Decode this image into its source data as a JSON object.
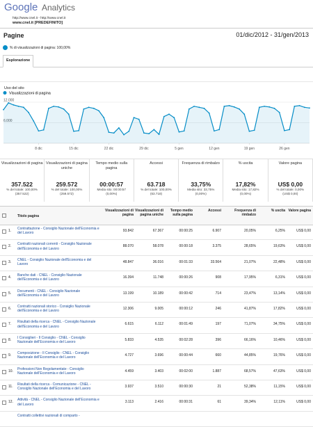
{
  "header": {
    "logo": "Google",
    "product": "Analytics",
    "url": "http://www.cnel.it - http://www.cnel.it",
    "profile": "www.cnel.it [PREDEFINITO]"
  },
  "title": "Pagine",
  "date_range": "01/dic/2012 - 31/gen/2013",
  "segment": "% di visualizzazioni di pagina: 100,00%",
  "tab": "Esplorazione",
  "subtab": "Uso del sito",
  "chart_data": {
    "type": "line",
    "legend": "Visualizzazioni di pagina",
    "color": "#058dc7",
    "categories": [
      null,
      null,
      null,
      null,
      null,
      null,
      null,
      "8 dic",
      null,
      null,
      null,
      null,
      null,
      null,
      "15 dic",
      null,
      null,
      null,
      null,
      null,
      null,
      "22 dic",
      null,
      null,
      null,
      null,
      null,
      null,
      "29 dic",
      null,
      null,
      null,
      null,
      null,
      null,
      "5 gen",
      null,
      null,
      null,
      null,
      null,
      null,
      "12 gen",
      null,
      null,
      null,
      null,
      null,
      null,
      "19 gen",
      null,
      null,
      null,
      null,
      null,
      null,
      "26 gen",
      null,
      null,
      null,
      null,
      null
    ],
    "values": [
      9800,
      11800,
      11200,
      10800,
      10500,
      9000,
      6500,
      3600,
      3900,
      10200,
      10800,
      10600,
      10000,
      8500,
      3500,
      3700,
      10000,
      10500,
      10200,
      9500,
      7500,
      3200,
      3000,
      4500,
      2500,
      3500,
      7500,
      7000,
      3000,
      2800,
      4000,
      2600,
      7800,
      8500,
      7500,
      3300,
      3600,
      10000,
      10800,
      10500,
      10200,
      8800,
      3600,
      4000,
      10800,
      11000,
      10600,
      10000,
      8500,
      3500,
      3800,
      10500,
      10800,
      10600,
      10200,
      9000,
      3700,
      4000,
      10800,
      11000,
      10500,
      10300
    ],
    "ylim": [
      0,
      12800
    ],
    "yticks": [
      {
        "value": 12000,
        "label": "12.000"
      },
      {
        "value": 6000,
        "label": "6.000"
      }
    ],
    "grid": true
  },
  "summary": [
    {
      "label": "Visualizzazioni di pagina",
      "value": "357.522",
      "note": "% del totale: 100,00%",
      "note2": "(357.522)"
    },
    {
      "label": "Visualizzazioni di pagina uniche",
      "value": "259.572",
      "note": "% del totale: 100,00%",
      "note2": "(259.572)"
    },
    {
      "label": "Tempo medio sulla pagina",
      "value": "00:00:57",
      "note": "Media sito: 00:00:57",
      "note2": "(0,00%)"
    },
    {
      "label": "Accessi",
      "value": "63.718",
      "note": "% del totale: 100,00%",
      "note2": "(63.718)"
    },
    {
      "label": "Frequenza di rimbalzo",
      "value": "33,75%",
      "note": "Media sito: 33,75%",
      "note2": "(0,00%)"
    },
    {
      "label": "% uscita",
      "value": "17,82%",
      "note": "Media sito: 17,82%",
      "note2": "(0,00%)"
    },
    {
      "label": "Valore pagina",
      "value": "US$ 0,00",
      "note": "% del totale: 0,00%",
      "note2": "(US$ 0,00)"
    }
  ],
  "table": {
    "headers": [
      "Titolo pagina",
      "Visualizzazioni di pagina",
      "Visualizzazioni di pagina uniche",
      "Tempo medio sulla pagina",
      "Accessi",
      "Frequenza di rimbalzo",
      "% uscita",
      "Valore pagina"
    ],
    "rows": [
      [
        "1.",
        "Contrattazione - Consiglio Nazionale dell'Economia e del Lavoro",
        "93.842",
        "67.367",
        "00:00:25",
        "6.907",
        "20,05%",
        "6,25%",
        "US$ 0,00"
      ],
      [
        "2.",
        "Contratti nazionali correnti - Consiglio Nazionale dell'Economia e del Lavoro",
        "88.070",
        "58.078",
        "00:00:18",
        "3.375",
        "28,65%",
        "19,63%",
        "US$ 0,00"
      ],
      [
        "3.",
        "CNEL - Consiglio Nazionale dell'Economia e del Lavoro",
        "48.847",
        "36.016",
        "00:01:33",
        "33.564",
        "21,07%",
        "22,48%",
        "US$ 0,00"
      ],
      [
        "4.",
        "Banche dati - CNEL - Consiglio Nazionale dell'Economia e del Lavoro",
        "16.394",
        "11.748",
        "00:00:26",
        "908",
        "17,95%",
        "6,31%",
        "US$ 0,00"
      ],
      [
        "5.",
        "Documenti - CNEL - Consiglio Nazionale dell'Economia e del Lavoro",
        "13.199",
        "10.189",
        "00:00:42",
        "714",
        "23,47%",
        "13,14%",
        "US$ 0,00"
      ],
      [
        "6.",
        "Contratti nazionali storico - Consiglio Nazionale dell'Economia e del Lavoro",
        "12.306",
        "9.005",
        "00:00:12",
        "246",
        "41,87%",
        "17,82%",
        "US$ 0,00"
      ],
      [
        "7.",
        "Risultati della ricerca - CNEL - Consiglio Nazionale dell'Economia e del Lavoro",
        "6.615",
        "6.112",
        "00:01:49",
        "197",
        "71,07%",
        "34,75%",
        "US$ 0,00"
      ],
      [
        "8.",
        "I Consiglieri - Il Consiglio - CNEL - Consiglio Nazionale dell'Economia e del Lavoro",
        "5.833",
        "4.535",
        "00:02:28",
        "396",
        "66,16%",
        "10,46%",
        "US$ 0,00"
      ],
      [
        "9.",
        "Composizione - Il Consiglio - CNEL - Consiglio Nazionale dell'Economia e del Lavoro",
        "4.727",
        "3.696",
        "00:00:44",
        "660",
        "44,85%",
        "19,76%",
        "US$ 0,00"
      ],
      [
        "10.",
        "Professioni Non Regolamentate - Consiglio Nazionale dell'Economia e del Lavoro",
        "4.459",
        "3.403",
        "00:02:00",
        "1.887",
        "68,57%",
        "47,63%",
        "US$ 0,00"
      ],
      [
        "11.",
        "Risultati della ricerca - Comunicazione - CNEL - Consiglio Nazionale dell'Economia e del Lavoro",
        "3.937",
        "3.510",
        "00:00:30",
        "21",
        "52,38%",
        "11,15%",
        "US$ 0,00"
      ],
      [
        "12.",
        "Attività - CNEL - Consiglio Nazionale dell'Economia e del Lavoro",
        "3.113",
        "2.416",
        "00:00:31",
        "61",
        "39,34%",
        "12,11%",
        "US$ 0,00"
      ],
      [
        "",
        "Contratti collettivi nazionali di comparto -",
        "",
        "",
        "",
        "",
        "",
        "",
        ""
      ]
    ]
  }
}
